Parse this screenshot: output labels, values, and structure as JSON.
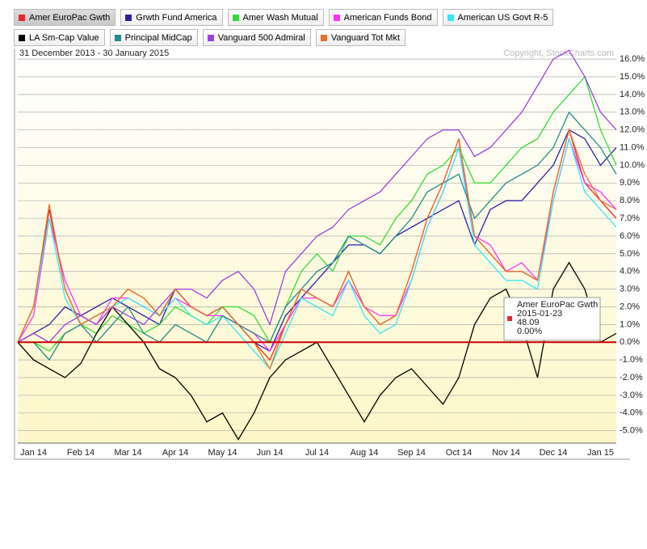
{
  "chart_data": {
    "type": "line",
    "subtitle": "31 December 2013 - 30 January 2015",
    "credit": "Copyright, StockCharts.com",
    "categories": [
      null,
      "Jan 14",
      null,
      null,
      "Feb 14",
      null,
      null,
      "Mar 14",
      null,
      null,
      "Apr 14",
      null,
      null,
      "May 14",
      null,
      null,
      "Jun 14",
      null,
      null,
      "Jul 14",
      null,
      null,
      "Aug 14",
      null,
      null,
      "Sep 14",
      null,
      null,
      "Oct 14",
      null,
      null,
      "Nov 14",
      null,
      null,
      "Dec 14",
      null,
      null,
      "Jan 15",
      null
    ],
    "series": [
      {
        "name": "Amer EuroPac Gwth",
        "color": "#e8262a",
        "values": [
          0,
          2,
          7.5,
          3,
          1,
          1.5,
          2,
          3,
          2.5,
          1.5,
          3,
          2,
          1.5,
          2,
          1,
          0,
          -1,
          1,
          3,
          2.5,
          2,
          4,
          2,
          1,
          1.5,
          4,
          7,
          9,
          11.5,
          6,
          5,
          4,
          4,
          3.5,
          8.5,
          12,
          9,
          8,
          7
        ]
      },
      {
        "name": "Grwth Fund America",
        "color": "#2b1fa8",
        "values": [
          0,
          0.5,
          1,
          2,
          1.5,
          2,
          2.5,
          2,
          1.5,
          1,
          3,
          2,
          1.5,
          2,
          1,
          0,
          -0.5,
          1.5,
          2.5,
          3.5,
          4.5,
          5.5,
          5.5,
          5,
          6,
          6.5,
          7,
          7.5,
          8,
          5.5,
          7.5,
          8,
          8,
          9,
          10,
          12,
          11.5,
          10,
          11
        ]
      },
      {
        "name": "Amer Wash Mutual",
        "color": "#33dd33",
        "values": [
          0,
          0,
          -0.5,
          0.5,
          1,
          0.5,
          1.5,
          1,
          0.5,
          1,
          2,
          1.5,
          1,
          2,
          2,
          1.5,
          0,
          2,
          4,
          5,
          4,
          6,
          6,
          5.5,
          7,
          8,
          9.5,
          10,
          11,
          9,
          9,
          10,
          11,
          11.5,
          13,
          14,
          15,
          12,
          10
        ]
      },
      {
        "name": "American Funds Bond",
        "color": "#ff33ff",
        "values": [
          0,
          1.5,
          7,
          3.5,
          1.5,
          1,
          2.5,
          2.5,
          2,
          1.5,
          2.5,
          2,
          1.5,
          1.5,
          1,
          0.5,
          -0.5,
          1,
          2.5,
          2.5,
          2,
          3.5,
          2,
          1.5,
          1.5,
          3.5,
          6.5,
          8.5,
          11,
          6,
          5.5,
          4,
          4.5,
          3.5,
          8,
          11.5,
          9,
          8.5,
          7.5
        ]
      },
      {
        "name": "American US Govt R-5",
        "color": "#33e8f8",
        "values": [
          0,
          2,
          7,
          2.5,
          1,
          1.5,
          2,
          2.5,
          2,
          1.5,
          2.5,
          1.5,
          1,
          1.5,
          0.5,
          -0.5,
          -1.5,
          0.5,
          2.5,
          2,
          1.5,
          3.5,
          1.5,
          0.5,
          1,
          3.5,
          6.5,
          8.5,
          11,
          5.5,
          4.5,
          3.5,
          3.5,
          3,
          8,
          11.5,
          8.5,
          7.5,
          6.5
        ]
      },
      {
        "name": "LA Sm-Cap Value",
        "color": "#000000",
        "values": [
          0,
          -1,
          -1.5,
          -2,
          -1.2,
          0.5,
          2,
          1,
          0,
          -1.5,
          -2,
          -3,
          -4.5,
          -4,
          -5.5,
          -4,
          -2,
          -1,
          -0.5,
          0,
          -1.5,
          -3,
          -4.5,
          -3,
          -2,
          -1.5,
          -2.5,
          -3.5,
          -2,
          1,
          2.5,
          3,
          1,
          -2,
          3,
          4.5,
          3,
          0,
          0.5
        ]
      },
      {
        "name": "Principal MidCap",
        "color": "#228b8b",
        "values": [
          0,
          0,
          -1,
          0.5,
          1,
          0,
          1,
          2,
          0.5,
          0,
          1,
          0.5,
          0,
          1.5,
          1,
          0.5,
          0,
          2,
          3,
          4,
          4.5,
          6,
          5.5,
          5,
          6,
          7,
          8.5,
          9,
          9.5,
          7,
          8,
          9,
          9.5,
          10,
          11,
          13,
          12,
          11,
          9.5
        ]
      },
      {
        "name": "Vanguard 500 Admiral",
        "color": "#9b3fe0",
        "values": [
          0,
          0.5,
          0,
          1,
          1.5,
          1,
          2,
          1.5,
          1,
          2,
          3,
          3,
          2.5,
          3.5,
          4,
          3,
          1,
          4,
          5,
          6,
          6.5,
          7.5,
          8,
          8.5,
          9.5,
          10.5,
          11.5,
          12,
          12,
          10.5,
          11,
          12,
          13,
          14.5,
          16,
          16.5,
          15,
          13,
          12
        ]
      },
      {
        "name": "Vanguard Tot Mkt",
        "color": "#e8702a",
        "values": [
          0,
          2,
          7.8,
          3,
          1,
          1.5,
          2,
          3,
          2.5,
          1.5,
          3,
          2,
          1.5,
          2,
          1,
          0,
          -1.5,
          1,
          3,
          2.5,
          2,
          4,
          2,
          1,
          1.5,
          4,
          7,
          9,
          11.5,
          6,
          5,
          4,
          4,
          3.5,
          8.5,
          12,
          9.5,
          8,
          7.5
        ]
      }
    ],
    "selected": "Amer EuroPac Gwth",
    "reference_line": 0,
    "reference_color": "#cc0000",
    "annotation": {
      "series": "Amer EuroPac Gwth",
      "date": "2015-01-23",
      "price": "48.09",
      "change": "0.00%"
    },
    "ylim": [
      -5.7,
      16.6
    ],
    "yticks": [
      {
        "value": -5,
        "label": "-5.0%"
      },
      {
        "value": -4,
        "label": "-4.0%"
      },
      {
        "value": -3,
        "label": "-3.0%"
      },
      {
        "value": -2,
        "label": "-2.0%"
      },
      {
        "value": -1,
        "label": "-1.0%"
      },
      {
        "value": 0,
        "label": "0.0%"
      },
      {
        "value": 1,
        "label": "1.0%"
      },
      {
        "value": 2,
        "label": "2.0%"
      },
      {
        "value": 3,
        "label": "3.0%"
      },
      {
        "value": 4,
        "label": "4.0%"
      },
      {
        "value": 5,
        "label": "5.0%"
      },
      {
        "value": 6,
        "label": "6.0%"
      },
      {
        "value": 7,
        "label": "7.0%"
      },
      {
        "value": 8,
        "label": "8.0%"
      },
      {
        "value": 9,
        "label": "9.0%"
      },
      {
        "value": 10,
        "label": "10.0%"
      },
      {
        "value": 11,
        "label": "11.0%"
      },
      {
        "value": 12,
        "label": "12.0%"
      },
      {
        "value": 13,
        "label": "13.0%"
      },
      {
        "value": 14,
        "label": "14.0%"
      },
      {
        "value": 15,
        "label": "15.0%"
      },
      {
        "value": 16,
        "label": "16.0%"
      }
    ],
    "grid": true
  }
}
